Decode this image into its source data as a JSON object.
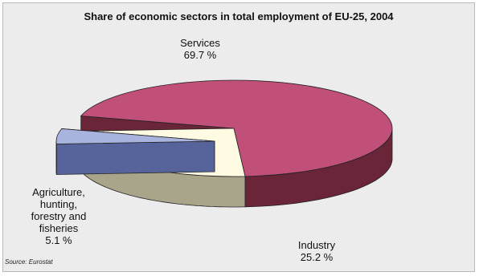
{
  "chart_data": {
    "type": "pie",
    "title": "Share of economic sectors in total employment of EU-25, 2004",
    "source": "Source: Eurostat",
    "slices": [
      {
        "label_lines": [
          "Services"
        ],
        "value_text": "69.7 %",
        "value": 69.7,
        "color": "#c0507a",
        "side": "#6b2538"
      },
      {
        "label_lines": [
          "Industry"
        ],
        "value_text": "25.2 %",
        "value": 25.2,
        "color": "#fffbe2",
        "side": "#a8a58a"
      },
      {
        "label_lines": [
          "Agriculture,",
          "hunting,",
          "forestry and",
          "fisheries"
        ],
        "value_text": "5.1 %",
        "value": 5.1,
        "color": "#a9b4de",
        "side": "#57649c"
      }
    ]
  }
}
